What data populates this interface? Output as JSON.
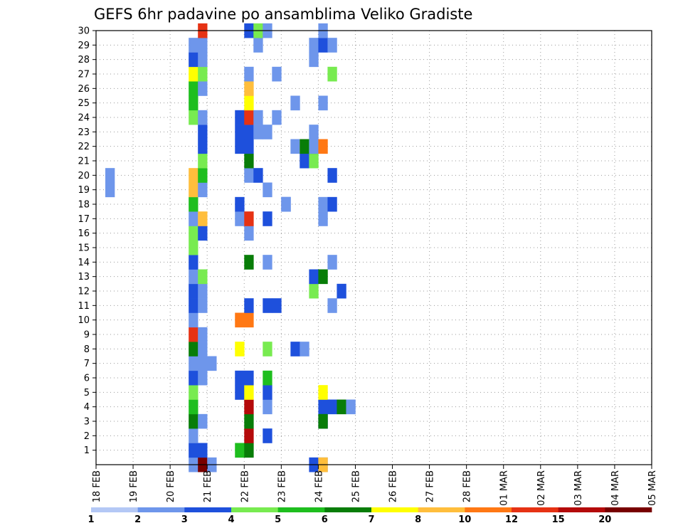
{
  "chart_data": {
    "type": "heatmap",
    "title": "GEFS 6hr padavine po ansamblima Veliko Gradiste",
    "xlabel": "",
    "ylabel": "",
    "x_tick_labels": [
      "18 FEB",
      "19 FEB",
      "20 FEB",
      "21 FEB",
      "22 FEB",
      "23 FEB",
      "24 FEB",
      "25 FEB",
      "26 FEB",
      "27 FEB",
      "28 FEB",
      "01 MAR",
      "02 MAR",
      "03 MAR",
      "04 MAR",
      "05 MAR"
    ],
    "x_range_days": [
      0,
      15
    ],
    "time_step_days": 0.25,
    "y_tick_labels": [
      "1",
      "2",
      "3",
      "4",
      "5",
      "6",
      "7",
      "8",
      "9",
      "10",
      "11",
      "12",
      "13",
      "14",
      "15",
      "16",
      "17",
      "18",
      "19",
      "20",
      "21",
      "22",
      "23",
      "24",
      "25",
      "26",
      "27",
      "28",
      "29",
      "30"
    ],
    "y_range": [
      0,
      30
    ],
    "grid": true,
    "colorbar": {
      "placement": "bottom",
      "bounds": [
        1,
        2,
        3,
        4,
        5,
        6,
        7,
        8,
        10,
        12,
        15,
        20
      ],
      "tick_labels": [
        "1",
        "2",
        "3",
        "4",
        "5",
        "6",
        "7",
        "8",
        "10",
        "12",
        "15",
        "20"
      ],
      "colors": [
        "#b4c8f5",
        "#6e96eb",
        "#1e50dc",
        "#78eb50",
        "#1ebe1e",
        "#087d08",
        "#ffff00",
        "#ffbe3c",
        "#ff7814",
        "#e63214",
        "#b40a0a",
        "#780000"
      ]
    },
    "cells_note": "Each cell: [time_index (6h steps from 18 FEB 00z), member (0-30), color_class (0-11)]",
    "cells": [
      [
        1,
        19,
        1
      ],
      [
        1,
        20,
        1
      ],
      [
        10,
        0,
        1
      ],
      [
        10,
        1,
        2
      ],
      [
        10,
        2,
        1
      ],
      [
        10,
        3,
        5
      ],
      [
        10,
        4,
        4
      ],
      [
        10,
        5,
        3
      ],
      [
        10,
        6,
        2
      ],
      [
        10,
        7,
        1
      ],
      [
        10,
        8,
        5
      ],
      [
        10,
        9,
        9
      ],
      [
        10,
        10,
        1
      ],
      [
        10,
        11,
        2
      ],
      [
        10,
        12,
        2
      ],
      [
        10,
        13,
        1
      ],
      [
        10,
        14,
        2
      ],
      [
        10,
        15,
        3
      ],
      [
        10,
        16,
        3
      ],
      [
        10,
        17,
        1
      ],
      [
        10,
        18,
        4
      ],
      [
        10,
        19,
        7
      ],
      [
        10,
        20,
        7
      ],
      [
        10,
        24,
        3
      ],
      [
        10,
        25,
        4
      ],
      [
        10,
        26,
        4
      ],
      [
        10,
        27,
        6
      ],
      [
        10,
        28,
        2
      ],
      [
        10,
        29,
        1
      ],
      [
        11,
        0,
        1
      ],
      [
        11,
        0,
        11
      ],
      [
        11,
        1,
        2
      ],
      [
        11,
        3,
        1
      ],
      [
        11,
        6,
        1
      ],
      [
        11,
        7,
        1
      ],
      [
        11,
        8,
        1
      ],
      [
        11,
        9,
        1
      ],
      [
        11,
        11,
        1
      ],
      [
        11,
        12,
        1
      ],
      [
        11,
        13,
        3
      ],
      [
        11,
        16,
        2
      ],
      [
        11,
        17,
        7
      ],
      [
        11,
        19,
        1
      ],
      [
        11,
        20,
        4
      ],
      [
        11,
        21,
        3
      ],
      [
        11,
        22,
        2
      ],
      [
        11,
        23,
        2
      ],
      [
        11,
        24,
        1
      ],
      [
        11,
        26,
        1
      ],
      [
        11,
        27,
        3
      ],
      [
        11,
        28,
        1
      ],
      [
        11,
        29,
        1
      ],
      [
        11,
        30,
        9
      ],
      [
        12,
        0,
        1
      ],
      [
        12,
        7,
        1
      ],
      [
        15,
        1,
        4
      ],
      [
        15,
        5,
        2
      ],
      [
        15,
        6,
        2
      ],
      [
        15,
        8,
        6
      ],
      [
        15,
        10,
        8
      ],
      [
        15,
        17,
        1
      ],
      [
        15,
        18,
        2
      ],
      [
        15,
        22,
        2
      ],
      [
        15,
        23,
        2
      ],
      [
        15,
        24,
        2
      ],
      [
        16,
        1,
        5
      ],
      [
        16,
        2,
        10
      ],
      [
        16,
        3,
        5
      ],
      [
        16,
        4,
        10
      ],
      [
        16,
        5,
        6
      ],
      [
        16,
        6,
        2
      ],
      [
        16,
        10,
        8
      ],
      [
        16,
        11,
        2
      ],
      [
        16,
        14,
        5
      ],
      [
        16,
        16,
        1
      ],
      [
        16,
        17,
        9
      ],
      [
        16,
        20,
        1
      ],
      [
        16,
        21,
        5
      ],
      [
        16,
        22,
        2
      ],
      [
        16,
        23,
        2
      ],
      [
        16,
        24,
        9
      ],
      [
        16,
        25,
        6
      ],
      [
        16,
        26,
        7
      ],
      [
        16,
        27,
        1
      ],
      [
        16,
        30,
        2
      ],
      [
        17,
        20,
        2
      ],
      [
        17,
        23,
        1
      ],
      [
        17,
        24,
        1
      ],
      [
        17,
        29,
        1
      ],
      [
        17,
        30,
        3
      ],
      [
        18,
        2,
        2
      ],
      [
        18,
        4,
        1
      ],
      [
        18,
        5,
        2
      ],
      [
        18,
        6,
        4
      ],
      [
        18,
        8,
        3
      ],
      [
        18,
        11,
        2
      ],
      [
        18,
        14,
        1
      ],
      [
        18,
        17,
        2
      ],
      [
        18,
        19,
        1
      ],
      [
        18,
        23,
        1
      ],
      [
        18,
        30,
        1
      ],
      [
        19,
        11,
        2
      ],
      [
        19,
        24,
        1
      ],
      [
        19,
        27,
        1
      ],
      [
        20,
        18,
        2
      ],
      [
        20,
        18,
        1
      ],
      [
        21,
        8,
        2
      ],
      [
        21,
        22,
        1
      ],
      [
        21,
        25,
        1
      ],
      [
        22,
        8,
        1
      ],
      [
        22,
        21,
        2
      ],
      [
        22,
        22,
        7
      ],
      [
        22,
        21,
        2
      ],
      [
        22,
        22,
        5
      ],
      [
        23,
        12,
        3
      ],
      [
        23,
        13,
        2
      ],
      [
        23,
        21,
        3
      ],
      [
        23,
        22,
        4
      ],
      [
        23,
        22,
        1
      ],
      [
        23,
        23,
        1
      ],
      [
        23,
        0,
        2
      ],
      [
        23,
        29,
        1
      ],
      [
        23,
        28,
        1
      ],
      [
        24,
        0,
        1
      ],
      [
        24,
        3,
        2
      ],
      [
        24,
        4,
        2
      ],
      [
        24,
        5,
        6
      ],
      [
        24,
        13,
        5
      ],
      [
        24,
        17,
        1
      ],
      [
        24,
        18,
        1
      ],
      [
        24,
        25,
        1
      ],
      [
        24,
        29,
        2
      ],
      [
        24,
        30,
        1
      ],
      [
        24,
        0,
        7
      ],
      [
        24,
        3,
        5
      ],
      [
        24,
        22,
        8
      ],
      [
        25,
        4,
        2
      ],
      [
        25,
        11,
        1
      ],
      [
        25,
        14,
        1
      ],
      [
        25,
        18,
        2
      ],
      [
        25,
        20,
        2
      ],
      [
        25,
        27,
        3
      ],
      [
        25,
        29,
        1
      ],
      [
        26,
        4,
        5
      ],
      [
        26,
        12,
        2
      ],
      [
        27,
        4,
        1
      ]
    ]
  }
}
